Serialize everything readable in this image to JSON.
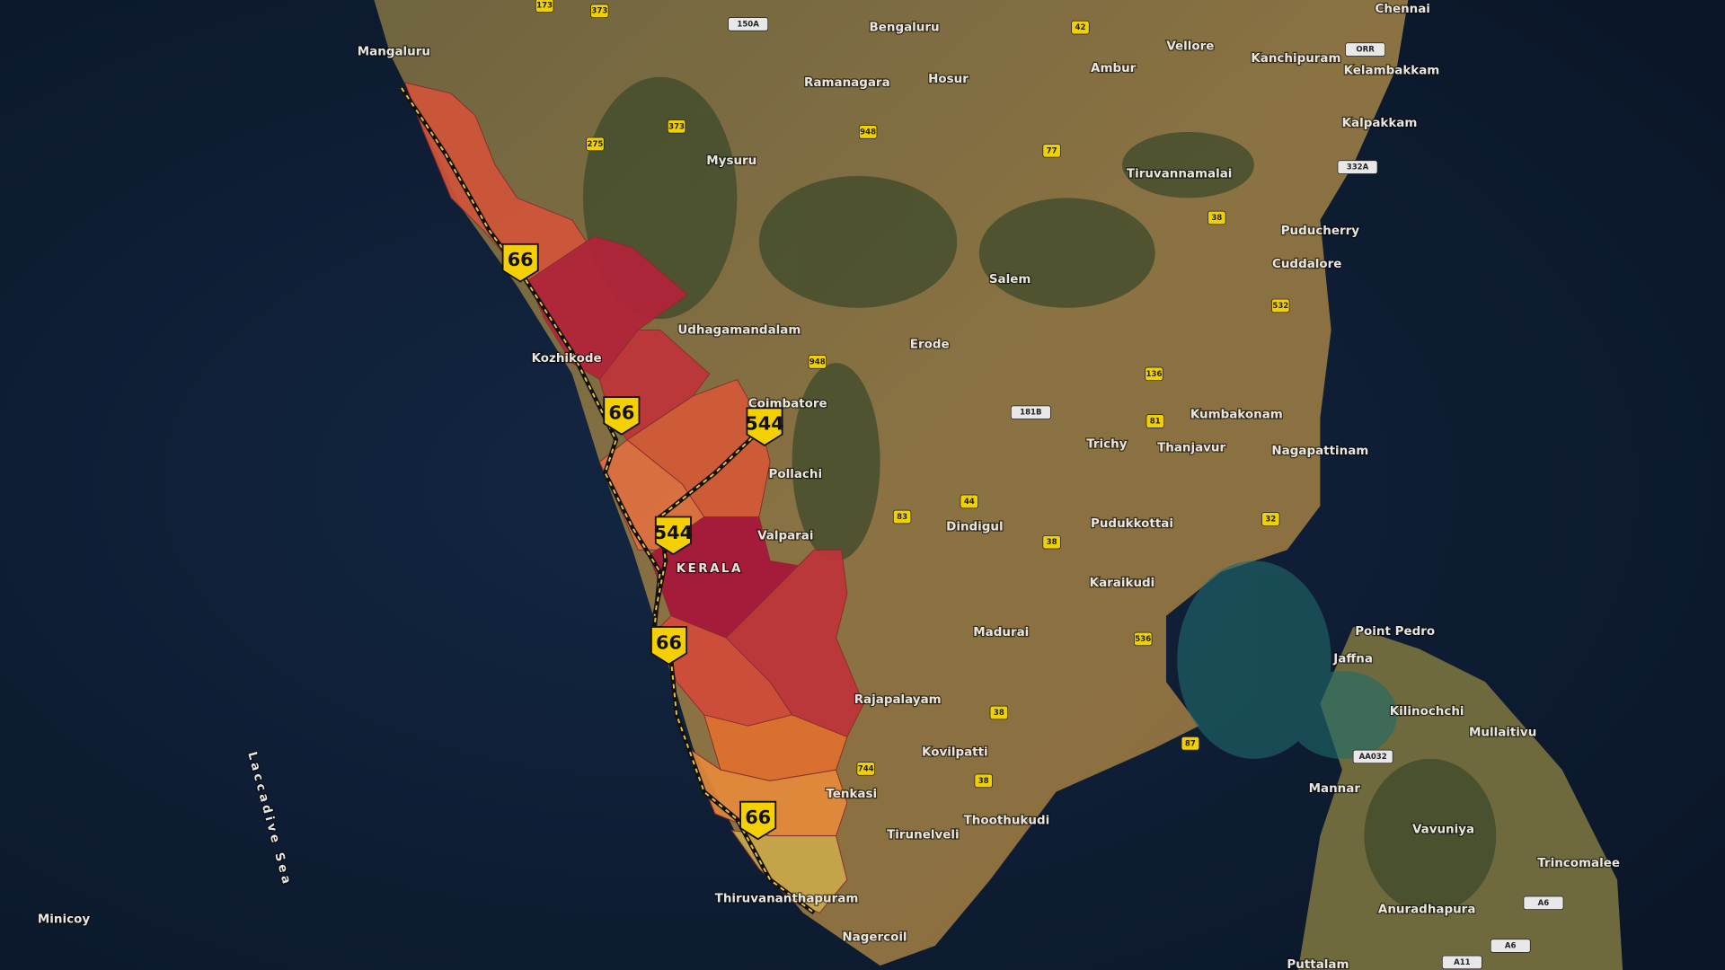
{
  "places": [
    "Mangaluru",
    "Bengaluru",
    "Chennai",
    "Vellore",
    "Kanchipuram",
    "Ramanagara",
    "Hosur",
    "Ambur",
    "Kelambakkam",
    "Kalpakkam",
    "Mysuru",
    "Tiruvannamalai",
    "Puducherry",
    "Cuddalore",
    "Salem",
    "Udhagamandalam",
    "Erode",
    "Kozhikode",
    "Coimbatore",
    "Kumbakonam",
    "Trichy",
    "Thanjavur",
    "Nagapattinam",
    "Pollachi",
    "Valparai",
    "Pudukkottai",
    "Dindigul",
    "Karaikudi",
    "Madurai",
    "Point Pedro",
    "Jaffna",
    "Kilinochchi",
    "Mullaitivu",
    "Rajapalayam",
    "Kovilpatti",
    "Mannar",
    "Vavuniya",
    "Tenkasi",
    "Thoothukudi",
    "Tirunelveli",
    "Trincomalee",
    "Thiruvananthapuram",
    "Anuradhapura",
    "Nagercoil",
    "Puttalam",
    "Minicoy"
  ],
  "region_label": "KERALA",
  "sea_label": "Laccadive Sea",
  "major_shields": [
    "66",
    "66",
    "544",
    "544",
    "66",
    "66"
  ],
  "minor_shields": [
    "173",
    "373",
    "150A",
    "42",
    "373",
    "948",
    "275",
    "77",
    "ORR",
    "332A",
    "38",
    "532",
    "948",
    "136",
    "181B",
    "81",
    "44",
    "83",
    "38",
    "32",
    "536",
    "38",
    "87",
    "744",
    "38",
    "AA032",
    "A6",
    "A6",
    "A11"
  ]
}
